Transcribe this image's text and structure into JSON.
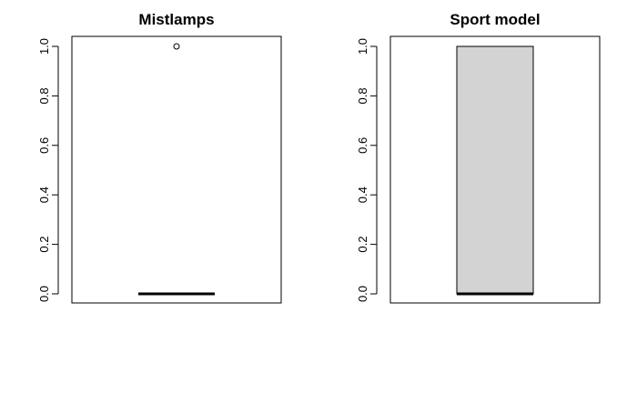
{
  "chart_data": [
    {
      "type": "boxplot",
      "title": "Mistlamps",
      "xlabel": "",
      "ylabel": "",
      "ylim": [
        0,
        1
      ],
      "yticks": [
        "0.0",
        "0.2",
        "0.4",
        "0.6",
        "0.8",
        "1.0"
      ],
      "box": {
        "min": 0,
        "q1": 0,
        "median": 0,
        "q3": 0,
        "max": 0
      },
      "outliers": [
        1
      ],
      "box_fill": "#ffffff"
    },
    {
      "type": "boxplot",
      "title": "Sport model",
      "xlabel": "",
      "ylabel": "",
      "ylim": [
        0,
        1
      ],
      "yticks": [
        "0.0",
        "0.2",
        "0.4",
        "0.6",
        "0.8",
        "1.0"
      ],
      "box": {
        "min": 0,
        "q1": 0,
        "median": 0,
        "q3": 1,
        "max": 1
      },
      "outliers": [],
      "box_fill": "#d3d3d3"
    }
  ]
}
